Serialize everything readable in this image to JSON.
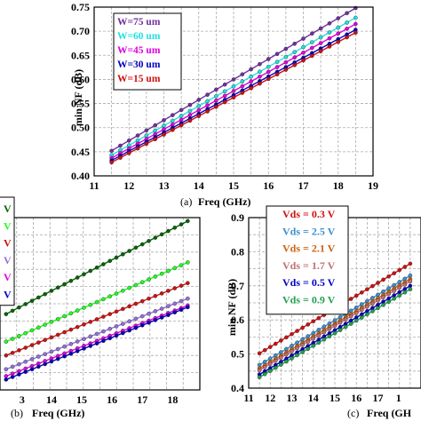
{
  "chart_data": [
    {
      "id": "a",
      "type": "line",
      "caption": "(a)",
      "xlabel": "Freq (GHz)",
      "ylabel": "min NF (dB)",
      "xlim": [
        11,
        19
      ],
      "ylim": [
        0.4,
        0.75
      ],
      "xticks": [
        "11",
        "12",
        "13",
        "14",
        "15",
        "16",
        "17",
        "18",
        "19"
      ],
      "yticks": [
        "0.40",
        "0.45",
        "0.50",
        "0.55",
        "0.60",
        "0.65",
        "0.70",
        "0.75"
      ],
      "grid": true,
      "legend_position": "top-left",
      "x": [
        11.5,
        18.5
      ],
      "series": [
        {
          "name": "W=75 um",
          "color": "#7030A0",
          "values": [
            0.452,
            0.748
          ]
        },
        {
          "name": "W=60 um",
          "color": "#22E0E0",
          "values": [
            0.443,
            0.728
          ]
        },
        {
          "name": "W=45 um",
          "color": "#E000E0",
          "values": [
            0.437,
            0.715
          ]
        },
        {
          "name": "W=30 um",
          "color": "#0000C0",
          "values": [
            0.432,
            0.703
          ]
        },
        {
          "name": "W=15 um",
          "color": "#D01010",
          "values": [
            0.428,
            0.697
          ]
        }
      ]
    },
    {
      "id": "b",
      "type": "line",
      "caption": "(b)",
      "xlabel": "Freq (GHz)",
      "ylabel": "",
      "xlim": [
        13,
        19
      ],
      "ylim": [
        0.4,
        0.9
      ],
      "xticks": [
        "3",
        "14",
        "15",
        "16",
        "17",
        "18"
      ],
      "grid": true,
      "legend_position": "top-left",
      "legend_entries": [
        "V",
        "V",
        "V",
        "V",
        "V",
        "V"
      ],
      "x": [
        12.5,
        18.5
      ],
      "series": [
        {
          "color": "#006400",
          "values": [
            0.62,
            0.89
          ]
        },
        {
          "color": "#22FF22",
          "values": [
            0.54,
            0.77
          ]
        },
        {
          "color": "#D01010",
          "values": [
            0.5,
            0.71
          ]
        },
        {
          "color": "#9370DB",
          "values": [
            0.46,
            0.665
          ]
        },
        {
          "color": "#E000E0",
          "values": [
            0.44,
            0.645
          ]
        },
        {
          "color": "#0000C0",
          "values": [
            0.43,
            0.64
          ]
        }
      ]
    },
    {
      "id": "c",
      "type": "line",
      "caption": "(c)",
      "xlabel": "Freq (GH",
      "ylabel": "min NF (dB)",
      "xlim": [
        11,
        19
      ],
      "ylim": [
        0.4,
        0.9
      ],
      "xticks": [
        "11",
        "12",
        "13",
        "14",
        "15",
        "16",
        "17",
        "1"
      ],
      "yticks": [
        "0.4",
        "0.5",
        "0.6",
        "0.7",
        "0.8",
        "0.9"
      ],
      "grid": true,
      "legend_position": "top-left",
      "x": [
        11.5,
        18.5
      ],
      "series": [
        {
          "name": "Vds = 0.3 V",
          "color": "#D01010",
          "values": [
            0.502,
            0.765
          ]
        },
        {
          "name": "Vds = 2.5 V",
          "color": "#3A8FD0",
          "values": [
            0.468,
            0.73
          ]
        },
        {
          "name": "Vds = 2.1 V",
          "color": "#D06010",
          "values": [
            0.458,
            0.72
          ]
        },
        {
          "name": "Vds = 1.7 V",
          "color": "#C07070",
          "values": [
            0.452,
            0.713
          ]
        },
        {
          "name": "Vds = 0.5 V",
          "color": "#0000C0",
          "values": [
            0.44,
            0.7
          ]
        },
        {
          "name": "Vds = 0.9 V",
          "color": "#22A050",
          "values": [
            0.432,
            0.69
          ]
        }
      ]
    }
  ]
}
